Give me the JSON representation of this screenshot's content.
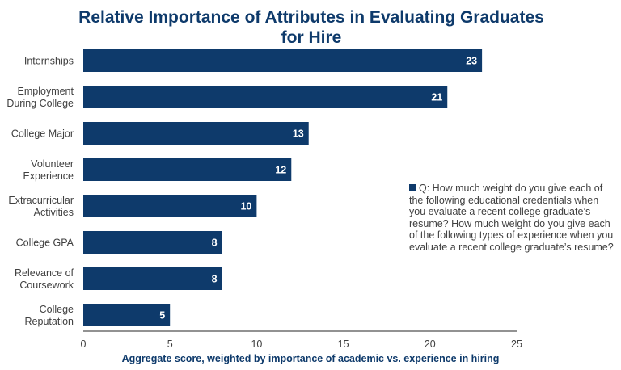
{
  "chart_data": {
    "type": "bar",
    "orientation": "horizontal",
    "title_lines": [
      "Relative Importance of Attributes in Evaluating Graduates",
      "for Hire"
    ],
    "categories": [
      [
        "Internships"
      ],
      [
        "Employment",
        "During College"
      ],
      [
        "College Major"
      ],
      [
        "Volunteer",
        "Experience"
      ],
      [
        "Extracurricular",
        "Activities"
      ],
      [
        "College GPA"
      ],
      [
        "Relevance of",
        "Coursework"
      ],
      [
        "College",
        "Reputation"
      ]
    ],
    "values": [
      23,
      21,
      13,
      12,
      10,
      8,
      8,
      5
    ],
    "xlabel": "Aggregate score, weighted by importance of academic vs. experience in hiring",
    "xlim": [
      0,
      25
    ],
    "xticks": [
      "0",
      "5",
      "10",
      "15",
      "20",
      "25"
    ],
    "grid": false,
    "legend_placement": "right",
    "legend_text": "Q: How much weight do you give each of the following educational credentials when you evaluate a recent college graduate’s resume? How much weight do you give each of the following types of experience when you evaluate a recent college graduate’s resume?",
    "bar_color": "#0e3a6b",
    "title_color": "#0e3a6b"
  }
}
